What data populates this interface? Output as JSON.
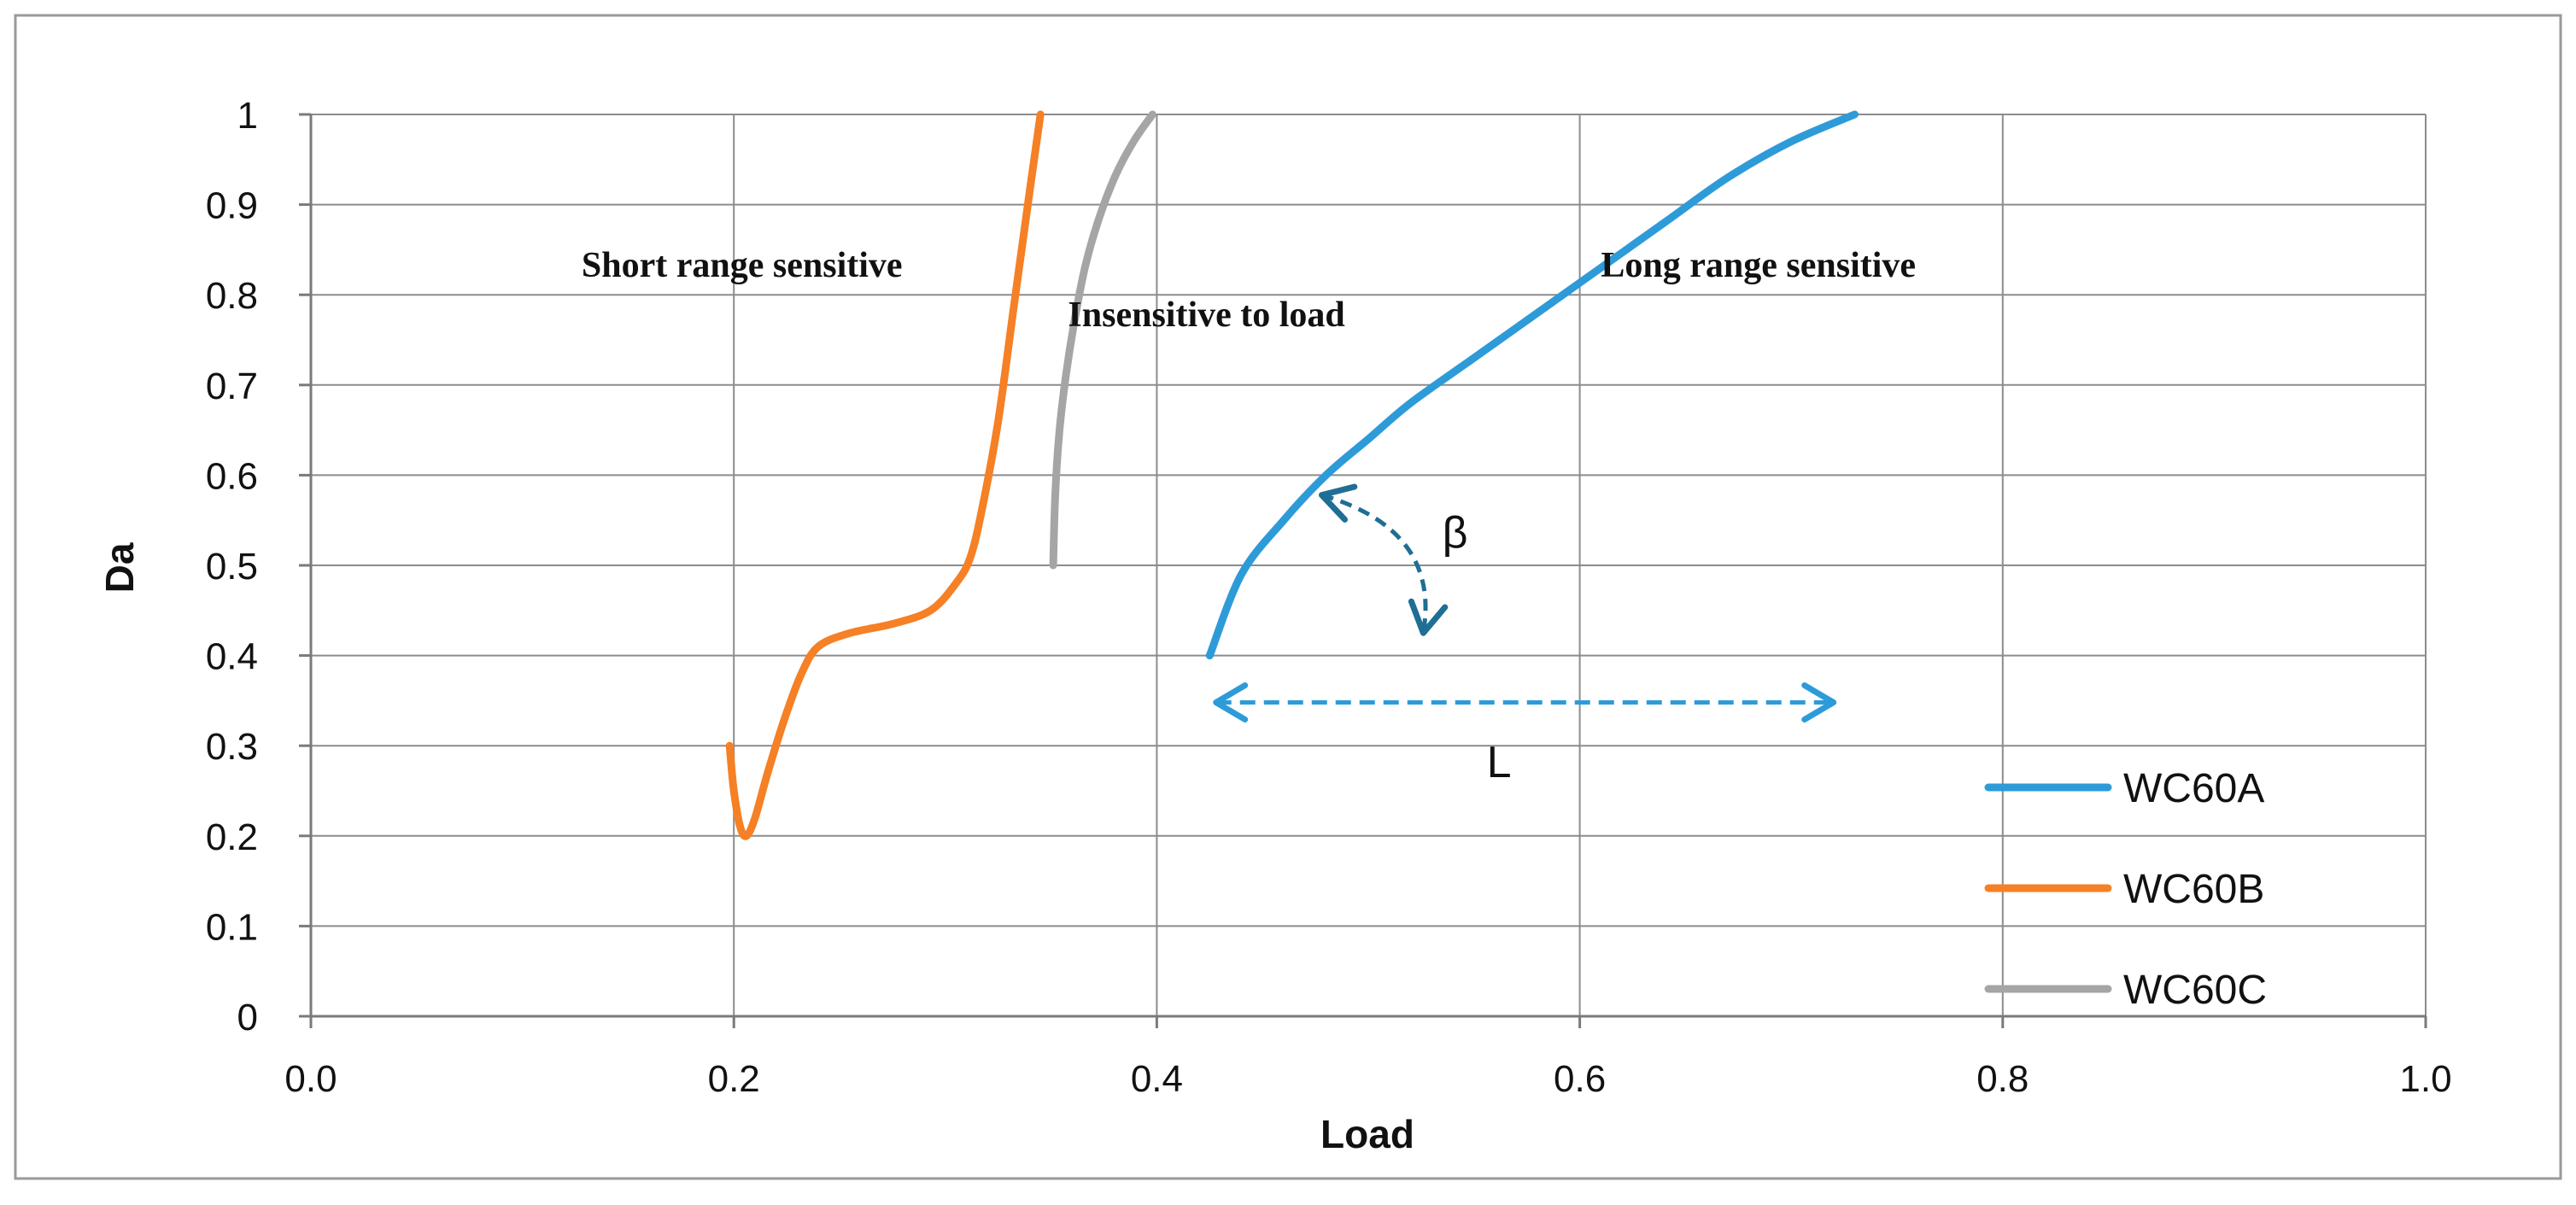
{
  "chart_data": {
    "type": "line",
    "title": "",
    "xlabel": "Load",
    "ylabel": "Da",
    "xlim": [
      0.0,
      1.0
    ],
    "ylim": [
      0,
      1
    ],
    "xticks": [
      0.0,
      0.2,
      0.4,
      0.6,
      0.8,
      1.0
    ],
    "xtick_labels": [
      "0.0",
      "0.2",
      "0.4",
      "0.6",
      "0.8",
      "1.0"
    ],
    "yticks": [
      0,
      0.1,
      0.2,
      0.3,
      0.4,
      0.5,
      0.6,
      0.7,
      0.8,
      0.9,
      1
    ],
    "ytick_labels": [
      "0",
      "0.1",
      "0.2",
      "0.3",
      "0.4",
      "0.5",
      "0.6",
      "0.7",
      "0.8",
      "0.9",
      "1"
    ],
    "grid": true,
    "legend_position": "bottom-right",
    "series": [
      {
        "name": "WC60A",
        "color": "#2E9BD9",
        "x": [
          0.425,
          0.44,
          0.46,
          0.48,
          0.5,
          0.52,
          0.55,
          0.58,
          0.61,
          0.64,
          0.67,
          0.7,
          0.73
        ],
        "y": [
          0.4,
          0.49,
          0.55,
          0.6,
          0.64,
          0.68,
          0.73,
          0.78,
          0.83,
          0.88,
          0.93,
          0.97,
          1.0
        ]
      },
      {
        "name": "WC60B",
        "color": "#F58025",
        "x": [
          0.198,
          0.2,
          0.203,
          0.206,
          0.21,
          0.216,
          0.224,
          0.232,
          0.24,
          0.255,
          0.275,
          0.293,
          0.305,
          0.312,
          0.318,
          0.325,
          0.332,
          0.339,
          0.345
        ],
        "y": [
          0.3,
          0.25,
          0.21,
          0.2,
          0.22,
          0.27,
          0.33,
          0.38,
          0.41,
          0.425,
          0.435,
          0.45,
          0.48,
          0.51,
          0.57,
          0.66,
          0.78,
          0.9,
          1.0
        ]
      },
      {
        "name": "WC60C",
        "color": "#A5A5A5",
        "x": [
          0.351,
          0.352,
          0.354,
          0.357,
          0.361,
          0.366,
          0.372,
          0.38,
          0.389,
          0.398
        ],
        "y": [
          0.5,
          0.58,
          0.65,
          0.71,
          0.77,
          0.83,
          0.88,
          0.93,
          0.97,
          1.0
        ]
      }
    ],
    "annotations": [
      {
        "text": "Short range sensitive",
        "x": 0.128,
        "y": 0.82
      },
      {
        "text": "Insensitive to load",
        "x": 0.358,
        "y": 0.765
      },
      {
        "text": "Long range sensitive",
        "x": 0.61,
        "y": 0.82
      },
      {
        "text": "β",
        "x": 0.535,
        "y": 0.52
      },
      {
        "text": "L",
        "x": 0.556,
        "y": 0.265
      }
    ],
    "arrows": [
      {
        "name": "beta-arc-arrow",
        "color": "#1F6E94",
        "from": [
          0.478,
          0.578
        ],
        "to": [
          0.526,
          0.425
        ]
      },
      {
        "name": "length-arrow",
        "color": "#2E9BD9",
        "from": [
          0.428,
          0.348
        ],
        "to": [
          0.72,
          0.348
        ]
      }
    ]
  }
}
